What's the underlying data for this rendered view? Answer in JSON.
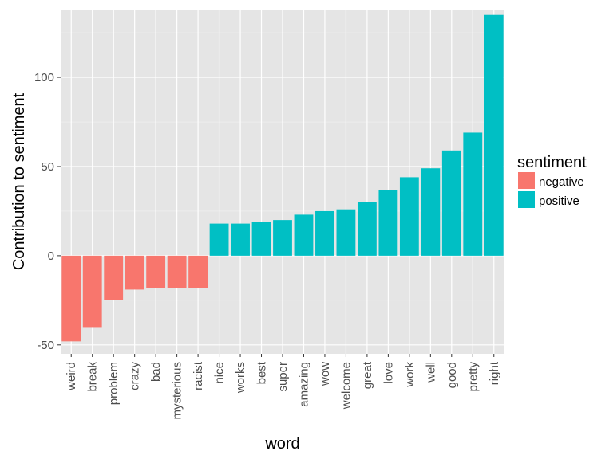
{
  "chart_data": {
    "type": "bar",
    "xlabel": "word",
    "ylabel": "Contribution to sentiment",
    "ylim": [
      -55,
      138
    ],
    "yticks": [
      -50,
      0,
      50,
      100
    ],
    "ytick_labels": [
      "-50",
      "0",
      "50",
      "100"
    ],
    "grid": true,
    "legend": {
      "title": "sentiment",
      "placement": "right",
      "entries": [
        {
          "label": "negative",
          "color": "#F8766D"
        },
        {
          "label": "positive",
          "color": "#00BFC4"
        }
      ]
    },
    "categories": [
      "weird",
      "break",
      "problem",
      "crazy",
      "bad",
      "mysterious",
      "racist",
      "nice",
      "works",
      "best",
      "super",
      "amazing",
      "wow",
      "welcome",
      "great",
      "love",
      "work",
      "well",
      "good",
      "pretty",
      "right"
    ],
    "values": [
      -48,
      -40,
      -25,
      -19,
      -18,
      -18,
      -18,
      18,
      18,
      19,
      20,
      23,
      25,
      26,
      30,
      37,
      44,
      49,
      59,
      69,
      135
    ],
    "sentiment": [
      "negative",
      "negative",
      "negative",
      "negative",
      "negative",
      "negative",
      "negative",
      "positive",
      "positive",
      "positive",
      "positive",
      "positive",
      "positive",
      "positive",
      "positive",
      "positive",
      "positive",
      "positive",
      "positive",
      "positive",
      "positive"
    ]
  },
  "colors": {
    "panel_background": "#E5E5E5",
    "grid_major": "#FFFFFF",
    "negative": "#F8766D",
    "positive": "#00BFC4"
  }
}
